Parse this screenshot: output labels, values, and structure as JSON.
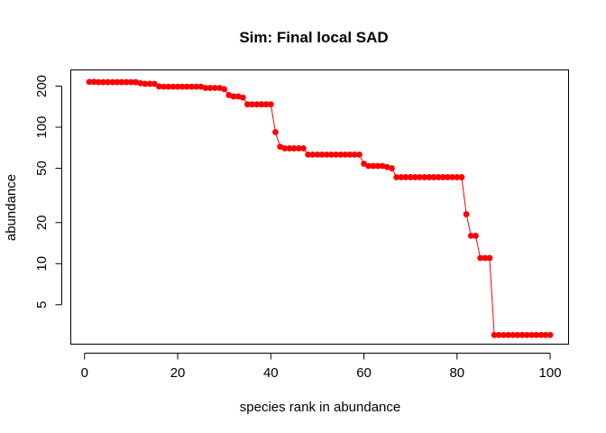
{
  "chart_data": {
    "type": "line",
    "title": "Sim: Final local SAD",
    "xlabel": "species rank in abundance",
    "ylabel": "abundance",
    "y_scale": "log",
    "xlim": [
      -2.96,
      103.96
    ],
    "ylim": [
      2.57,
      263
    ],
    "x_ticks": [
      0,
      20,
      40,
      60,
      80,
      100
    ],
    "y_ticks": [
      5,
      10,
      20,
      50,
      100,
      200
    ],
    "grid": false,
    "legend": "none",
    "series_color": "#ff0000",
    "marker": "filled-circle",
    "plot_style": "points-and-lines",
    "series": [
      {
        "values": [
          215,
          215,
          214,
          214,
          214,
          214,
          214,
          214,
          214,
          214,
          214,
          210,
          208,
          208,
          208,
          199,
          198,
          198,
          198,
          198,
          198,
          198,
          198,
          198,
          198,
          194,
          194,
          194,
          194,
          190,
          172,
          168,
          168,
          165,
          147,
          147,
          147,
          147,
          147,
          147,
          92,
          72,
          70,
          70,
          70,
          70,
          70,
          63,
          63,
          63,
          63,
          63,
          63,
          63,
          63,
          63,
          63,
          63,
          63,
          54,
          52,
          52,
          52,
          52,
          51,
          50,
          43,
          43,
          43,
          43,
          43,
          43,
          43,
          43,
          43,
          43,
          43,
          43,
          43,
          43,
          43,
          23,
          16,
          16,
          11,
          11,
          11,
          3,
          3,
          3,
          3,
          3,
          3,
          3,
          3,
          3,
          3,
          3,
          3,
          3
        ]
      }
    ]
  }
}
